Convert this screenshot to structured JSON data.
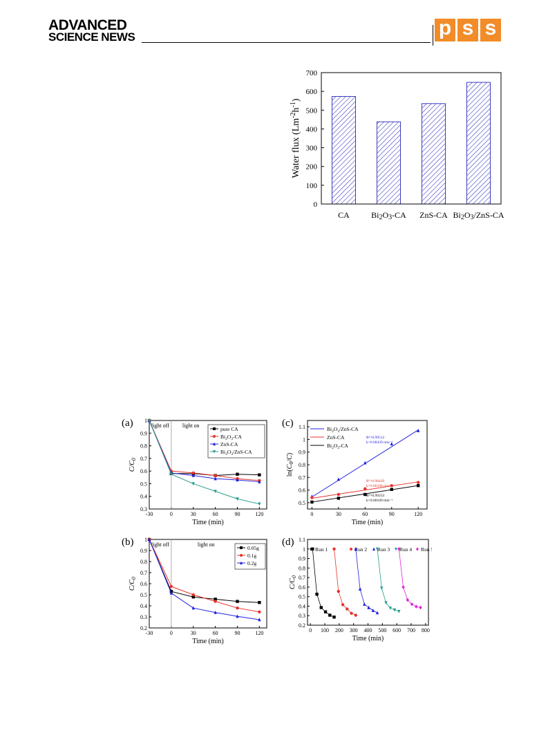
{
  "header": {
    "journal_line1": "ADVANCED",
    "journal_line2": "SCIENCE NEWS",
    "pss_letters": [
      "p",
      "s",
      "s"
    ],
    "accent_color": "#f28c28"
  },
  "chart_data": [
    {
      "id": "water-flux",
      "type": "bar",
      "ylabel_main": "Water flux (Lm",
      "ylabel_sup1": "-2",
      "ylabel_mid": "h",
      "ylabel_sup2": "-1",
      "ylabel_end": ")",
      "categories": [
        {
          "parts": [
            [
              "CA",
              ""
            ]
          ]
        },
        {
          "parts": [
            [
              "Bi",
              ""
            ],
            [
              "2",
              "sub"
            ],
            [
              "O",
              ""
            ],
            [
              "3",
              "sub"
            ],
            [
              "-CA",
              ""
            ]
          ]
        },
        {
          "parts": [
            [
              "ZnS-CA",
              ""
            ]
          ]
        },
        {
          "parts": [
            [
              "Bi",
              ""
            ],
            [
              "2",
              "sub"
            ],
            [
              "O",
              ""
            ],
            [
              "3",
              "sub"
            ],
            [
              "/ZnS-CA",
              ""
            ]
          ]
        }
      ],
      "values": [
        573,
        438,
        535,
        648
      ],
      "ylim": [
        0,
        700
      ],
      "yticks": [
        0,
        100,
        200,
        300,
        400,
        500,
        600,
        700
      ],
      "bar_color": "#3b3bbf"
    },
    {
      "id": "panel-a",
      "type": "line",
      "panel_label": "(a)",
      "xlabel": "Time (min)",
      "ylabel": "C/C0",
      "xticks": [
        -30,
        0,
        30,
        60,
        90,
        120
      ],
      "yticks": [
        0.3,
        0.4,
        0.5,
        0.6,
        0.7,
        0.8,
        0.9,
        1.0
      ],
      "xlim": [
        -30,
        130
      ],
      "ylim": [
        0.3,
        1.0
      ],
      "annotations": [
        "light off",
        "light on"
      ],
      "series": [
        {
          "name": "pure CA",
          "color": "#000000",
          "marker": "square",
          "x": [
            -30,
            0,
            30,
            60,
            90,
            120
          ],
          "y": [
            1.0,
            0.58,
            0.58,
            0.565,
            0.575,
            0.57
          ]
        },
        {
          "name": "Bi2O3-CA",
          "color": "#e8312a",
          "marker": "circle",
          "x": [
            -30,
            0,
            30,
            60,
            90,
            120
          ],
          "y": [
            1.0,
            0.6,
            0.585,
            0.565,
            0.54,
            0.525
          ]
        },
        {
          "name": "ZnS-CA",
          "color": "#2020e0",
          "marker": "triangle",
          "x": [
            -30,
            0,
            30,
            60,
            90,
            120
          ],
          "y": [
            1.0,
            0.585,
            0.565,
            0.54,
            0.53,
            0.515
          ]
        },
        {
          "name": "Bi2O3/ZnS-CA",
          "color": "#2a9d8f",
          "marker": "triangle-down",
          "x": [
            -30,
            0,
            30,
            60,
            90,
            120
          ],
          "y": [
            1.0,
            0.575,
            0.5,
            0.44,
            0.38,
            0.34
          ]
        }
      ]
    },
    {
      "id": "panel-b",
      "type": "line",
      "panel_label": "(b)",
      "xlabel": "Time (min)",
      "ylabel": "C/C0",
      "xticks": [
        -30,
        0,
        30,
        60,
        90,
        120
      ],
      "yticks": [
        0.2,
        0.3,
        0.4,
        0.5,
        0.6,
        0.7,
        0.8,
        0.9,
        1.0
      ],
      "xlim": [
        -30,
        130
      ],
      "ylim": [
        0.2,
        1.0
      ],
      "annotations": [
        "light off",
        "light on"
      ],
      "series": [
        {
          "name": "0.05g",
          "color": "#000000",
          "marker": "square",
          "x": [
            -30,
            0,
            30,
            60,
            90,
            120
          ],
          "y": [
            1.0,
            0.53,
            0.48,
            0.46,
            0.44,
            0.43
          ]
        },
        {
          "name": "0.1g",
          "color": "#e8312a",
          "marker": "circle",
          "x": [
            -30,
            0,
            30,
            60,
            90,
            120
          ],
          "y": [
            1.0,
            0.575,
            0.5,
            0.44,
            0.38,
            0.345
          ]
        },
        {
          "name": "0.2g",
          "color": "#2020e0",
          "marker": "triangle",
          "x": [
            -30,
            0,
            30,
            60,
            90,
            120
          ],
          "y": [
            1.0,
            0.515,
            0.38,
            0.34,
            0.305,
            0.275
          ]
        }
      ]
    },
    {
      "id": "panel-c",
      "type": "scatter",
      "panel_label": "(c)",
      "xlabel": "Time (min)",
      "ylabel": "ln(C0/C)",
      "xticks": [
        0,
        30,
        60,
        90,
        120
      ],
      "yticks": [
        0.5,
        0.6,
        0.7,
        0.8,
        0.9,
        1.0,
        1.1
      ],
      "xlim": [
        -5,
        130
      ],
      "ylim": [
        0.45,
        1.15
      ],
      "series": [
        {
          "name": "Bi2O3/ZnS-CA",
          "color": "#2020e0",
          "marker": "triangle",
          "x": [
            0,
            30,
            60,
            90,
            120
          ],
          "y": [
            0.55,
            0.685,
            0.815,
            0.965,
            1.07
          ],
          "fit": [
            0.545,
            1.075
          ],
          "r2": "R²=0.99512",
          "k": "k=0.00439 min⁻¹"
        },
        {
          "name": "ZnS-CA",
          "color": "#e8312a",
          "marker": "circle",
          "x": [
            0,
            30,
            60,
            90,
            120
          ],
          "y": [
            0.54,
            0.565,
            0.61,
            0.635,
            0.66
          ],
          "fit": [
            0.535,
            0.665
          ],
          "r2": "R²=0.98439",
          "k": "k=0.00106 min⁻¹"
        },
        {
          "name": "Bi2O3-CA",
          "color": "#000000",
          "marker": "square",
          "x": [
            0,
            30,
            60,
            90,
            120
          ],
          "y": [
            0.505,
            0.535,
            0.565,
            0.605,
            0.635
          ],
          "fit": [
            0.505,
            0.635
          ],
          "r2": "R²=0.99233",
          "k": "k=0.00109 min⁻¹"
        }
      ]
    },
    {
      "id": "panel-d",
      "type": "scatter",
      "panel_label": "(d)",
      "xlabel": "Time (min)",
      "ylabel": "C/C0",
      "xticks": [
        0,
        100,
        200,
        300,
        400,
        500,
        600,
        700,
        800
      ],
      "yticks": [
        0.2,
        0.3,
        0.4,
        0.5,
        0.6,
        0.7,
        0.8,
        0.9,
        1.0,
        1.1
      ],
      "xlim": [
        -20,
        820
      ],
      "ylim": [
        0.2,
        1.1
      ],
      "series": [
        {
          "name": "Run 1",
          "color": "#000000",
          "marker": "square",
          "x": [
            15,
            45,
            75,
            105,
            135,
            165
          ],
          "y": [
            1.0,
            0.525,
            0.385,
            0.34,
            0.305,
            0.285
          ]
        },
        {
          "name": "Run 2",
          "color": "#e8312a",
          "marker": "circle",
          "x": [
            165,
            195,
            225,
            255,
            285,
            315
          ],
          "y": [
            1.0,
            0.555,
            0.415,
            0.37,
            0.325,
            0.305
          ]
        },
        {
          "name": "Run 3",
          "color": "#2020e0",
          "marker": "triangle",
          "x": [
            315,
            345,
            375,
            405,
            435,
            465
          ],
          "y": [
            1.0,
            0.58,
            0.42,
            0.385,
            0.355,
            0.33
          ]
        },
        {
          "name": "Run 4",
          "color": "#2a9d8f",
          "marker": "triangle-down",
          "x": [
            465,
            495,
            525,
            555,
            585,
            615
          ],
          "y": [
            1.0,
            0.59,
            0.435,
            0.38,
            0.36,
            0.345
          ]
        },
        {
          "name": "Run 5",
          "color": "#e020d8",
          "marker": "diamond",
          "x": [
            615,
            645,
            675,
            705,
            735,
            765
          ],
          "y": [
            1.0,
            0.6,
            0.465,
            0.42,
            0.395,
            0.385
          ]
        }
      ]
    }
  ]
}
